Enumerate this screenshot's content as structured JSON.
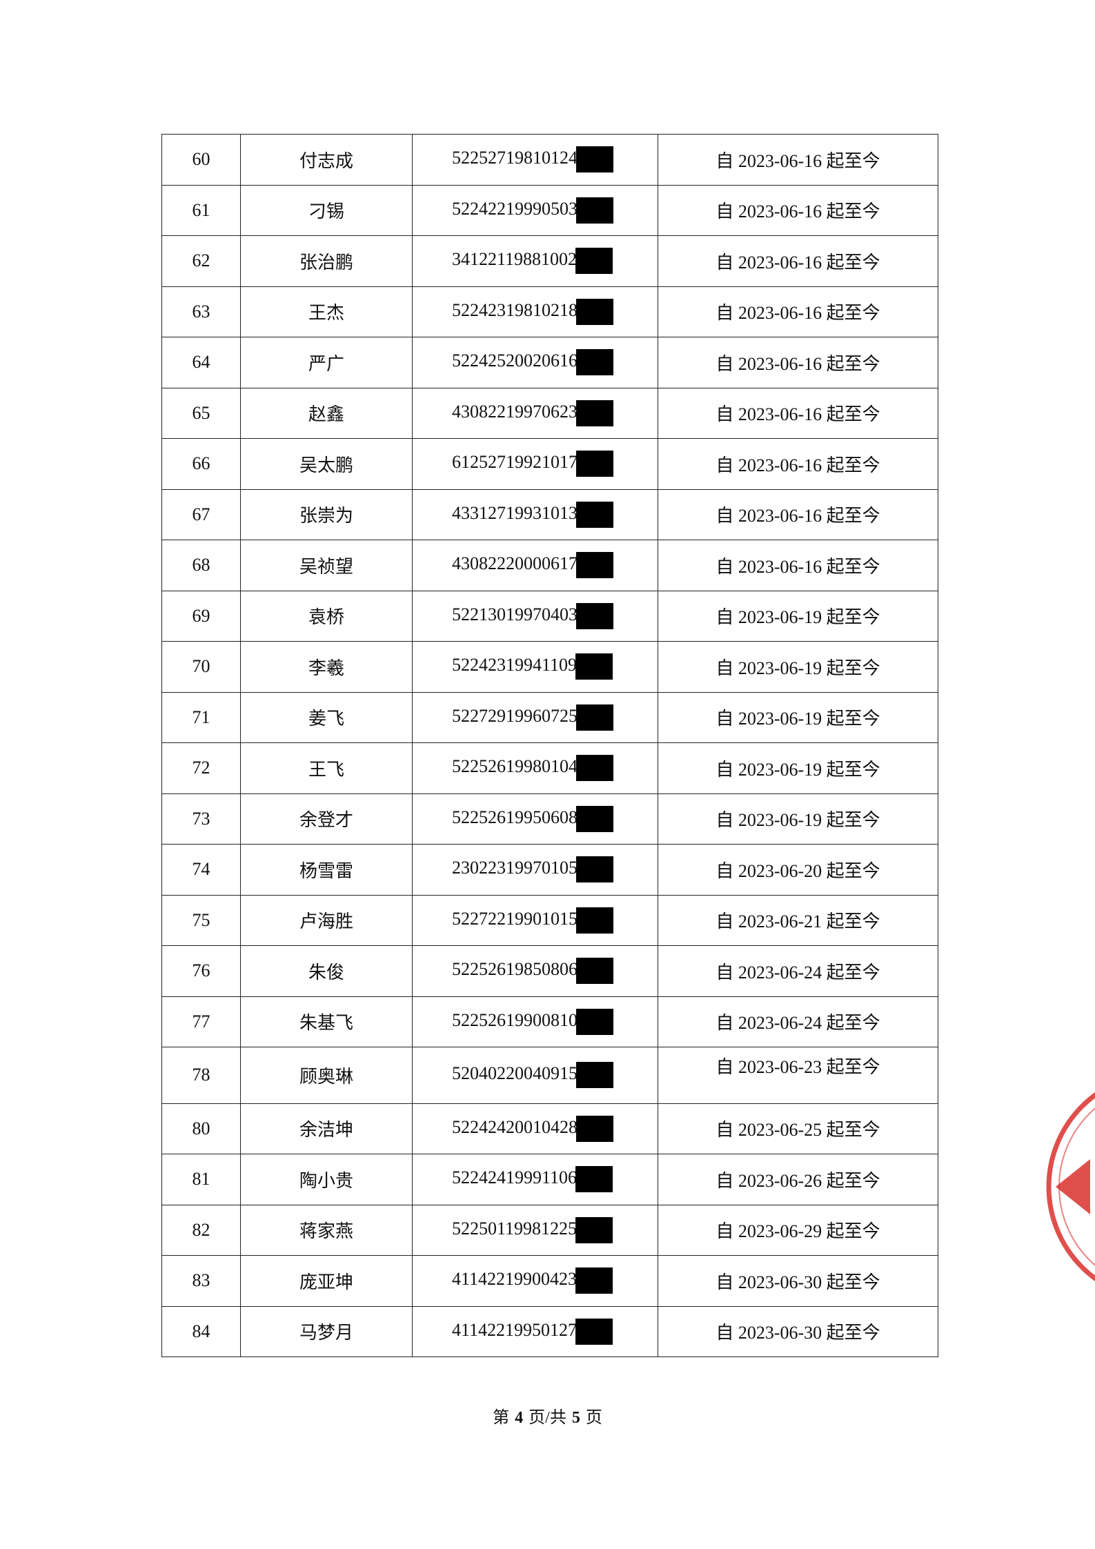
{
  "table": {
    "rows": [
      [
        "60",
        "付志成",
        "52252719810124",
        "自 2023-06-16 起至今"
      ],
      [
        "61",
        "刁锡",
        "52242219990503",
        "自 2023-06-16 起至今"
      ],
      [
        "62",
        "张治鹏",
        "34122119881002",
        "自 2023-06-16 起至今"
      ],
      [
        "63",
        "王杰",
        "52242319810218",
        "自 2023-06-16 起至今"
      ],
      [
        "64",
        "严广",
        "52242520020616",
        "自 2023-06-16 起至今"
      ],
      [
        "65",
        "赵鑫",
        "43082219970623",
        "自 2023-06-16 起至今"
      ],
      [
        "66",
        "吴太鹏",
        "61252719921017",
        "自 2023-06-16 起至今"
      ],
      [
        "67",
        "张崇为",
        "43312719931013",
        "自 2023-06-16 起至今"
      ],
      [
        "68",
        "吴祯望",
        "43082220000617",
        "自 2023-06-16 起至今"
      ],
      [
        "69",
        "袁桥",
        "52213019970403",
        "自 2023-06-19 起至今"
      ],
      [
        "70",
        "李羲",
        "52242319941109",
        "自 2023-06-19 起至今"
      ],
      [
        "71",
        "姜飞",
        "52272919960725",
        "自 2023-06-19 起至今"
      ],
      [
        "72",
        "王飞",
        "52252619980104",
        "自 2023-06-19 起至今"
      ],
      [
        "73",
        "余登才",
        "52252619950608",
        "自 2023-06-19 起至今"
      ],
      [
        "74",
        "杨雪雷",
        "23022319970105",
        "自 2023-06-20 起至今"
      ],
      [
        "75",
        "卢海胜",
        "52272219901015",
        "自 2023-06-21 起至今"
      ],
      [
        "76",
        "朱俊",
        "52252619850806",
        "自 2023-06-24 起至今"
      ],
      [
        "77",
        "朱基飞",
        "52252619900810",
        "自 2023-06-24 起至今"
      ],
      [
        "78",
        "顾奥琳",
        "52040220040915",
        "自 2023-06-23 起至今"
      ],
      [
        "80",
        "余洁坤",
        "52242420010428",
        "自 2023-06-25 起至今"
      ],
      [
        "81",
        "陶小贵",
        "52242419991106",
        "自 2023-06-26 起至今"
      ],
      [
        "82",
        "蒋家燕",
        "52250119981225",
        "自 2023-06-29 起至今"
      ],
      [
        "83",
        "庞亚坤",
        "41142219900423",
        "自 2023-06-30 起至今"
      ],
      [
        "84",
        "马梦月",
        "41142219950127",
        "自 2023-06-30 起至今"
      ]
    ]
  },
  "footer": [
    "第",
    "4",
    "页/共",
    "5",
    "页"
  ]
}
